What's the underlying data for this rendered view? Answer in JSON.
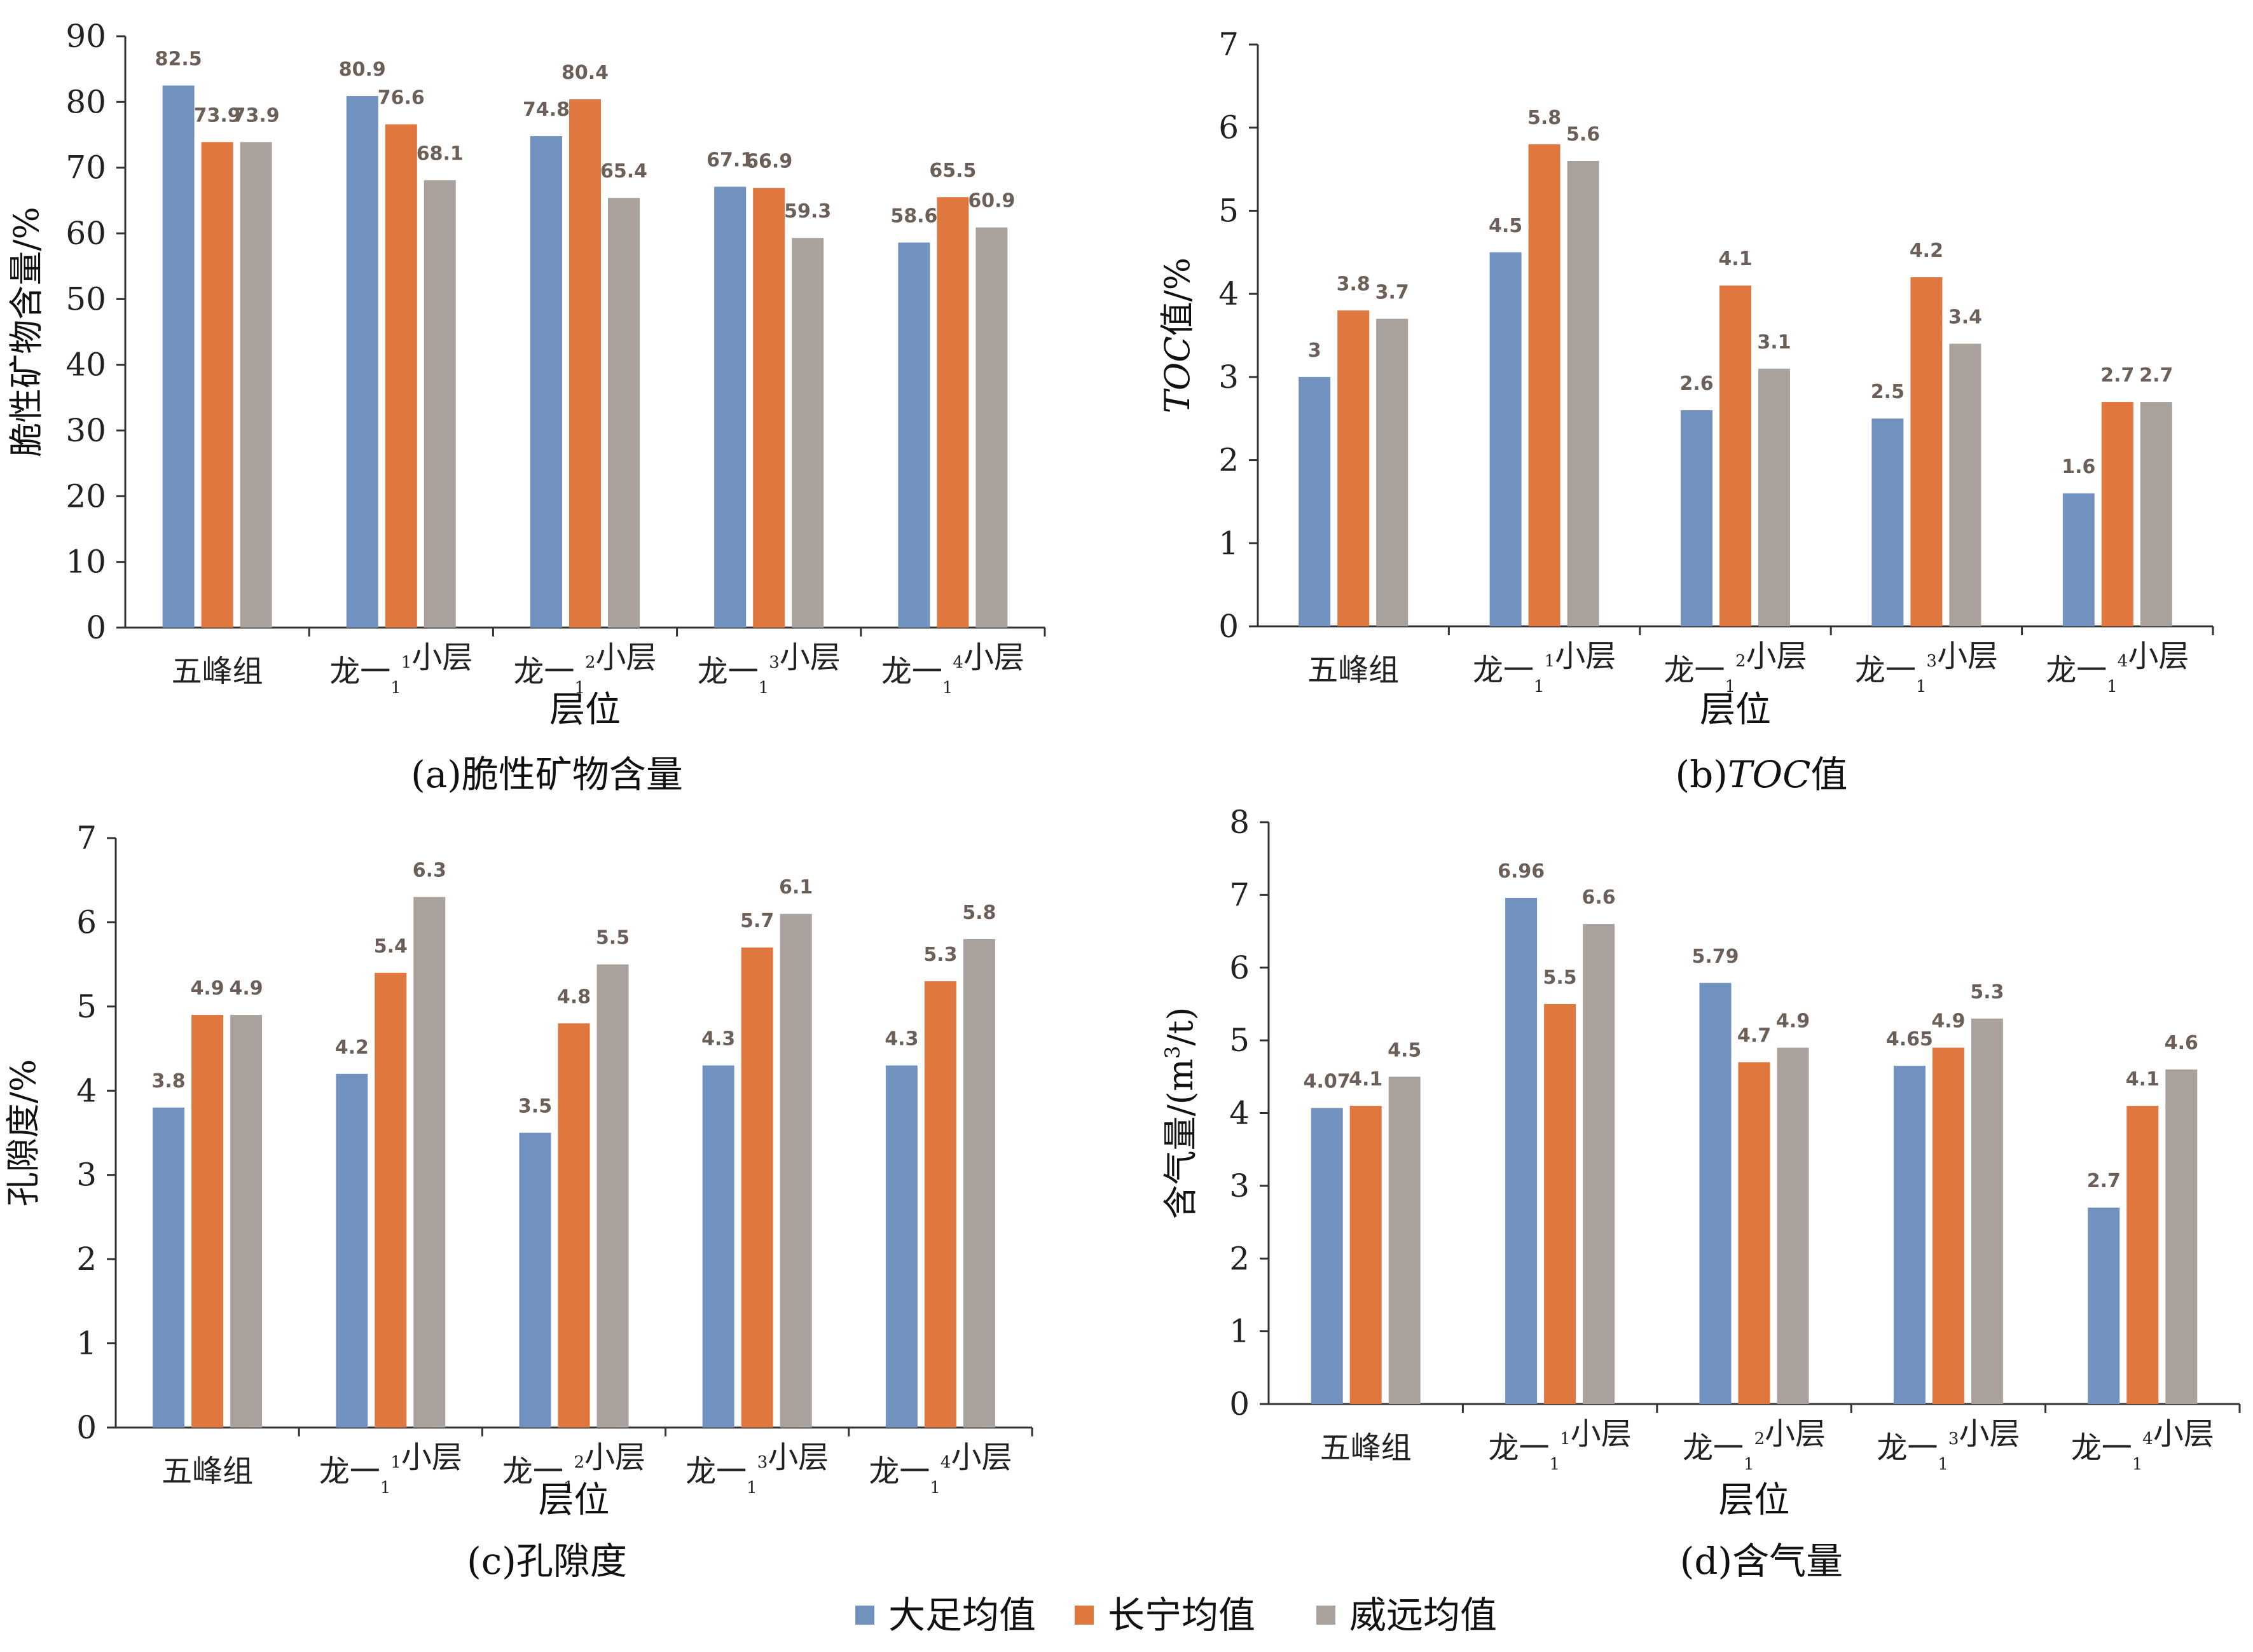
{
  "legend": [
    {
      "name": "大足均值",
      "color": "#7191be"
    },
    {
      "name": "长宁均值",
      "color": "#df773f"
    },
    {
      "name": "威远均值",
      "color": "#a9a19c"
    }
  ],
  "chart_data": [
    {
      "type": "bar",
      "caption": "(a)脆性矿物含量",
      "xlabel": "层位",
      "ylabel": "脆性矿物含量/%",
      "ylim": [
        0,
        90
      ],
      "yticks": [
        "0",
        "10",
        "20",
        "30",
        "40",
        "50",
        "60",
        "70",
        "80",
        "90"
      ],
      "categories": [
        "五峰组",
        "龙一₁¹小层",
        "龙一₁²小层",
        "龙一₁³小层",
        "龙一₁⁴小层"
      ],
      "series": [
        {
          "name": "大足均值",
          "values": [
            82.5,
            80.9,
            74.8,
            67.1,
            58.6
          ],
          "labels": [
            "82.5",
            "80.9",
            "74.8",
            "67.1",
            "58.6"
          ]
        },
        {
          "name": "长宁均值",
          "values": [
            73.9,
            76.6,
            80.4,
            66.9,
            65.5
          ],
          "labels": [
            "73.9",
            "76.6",
            "80.4",
            "66.9",
            "65.5"
          ]
        },
        {
          "name": "威远均值",
          "values": [
            73.9,
            68.1,
            65.4,
            59.3,
            60.9
          ],
          "labels": [
            "73.9",
            "68.1",
            "65.4",
            "59.3",
            "60.9"
          ]
        }
      ]
    },
    {
      "type": "bar",
      "caption": "(b)TOC值",
      "xlabel": "层位",
      "ylabel": "TOC值/%",
      "ylim": [
        0,
        7
      ],
      "yticks": [
        "0",
        "1",
        "2",
        "3",
        "4",
        "5",
        "6",
        "7"
      ],
      "categories": [
        "五峰组",
        "龙一₁¹小层",
        "龙一₁²小层",
        "龙一₁³小层",
        "龙一₁⁴小层"
      ],
      "series": [
        {
          "name": "大足均值",
          "values": [
            3.0,
            4.5,
            2.6,
            2.5,
            1.6
          ],
          "labels": [
            "3",
            "4.5",
            "2.6",
            "2.5",
            "1.6"
          ]
        },
        {
          "name": "长宁均值",
          "values": [
            3.8,
            5.8,
            4.1,
            4.2,
            2.7
          ],
          "labels": [
            "3.8",
            "5.8",
            "4.1",
            "4.2",
            "2.7"
          ]
        },
        {
          "name": "威远均值",
          "values": [
            3.7,
            5.6,
            3.1,
            3.4,
            2.7
          ],
          "labels": [
            "3.7",
            "5.6",
            "3.1",
            "3.4",
            "2.7"
          ]
        }
      ]
    },
    {
      "type": "bar",
      "caption": "(c)孔隙度",
      "xlabel": "层位",
      "ylabel": "孔隙度/%",
      "ylim": [
        0,
        7
      ],
      "yticks": [
        "0",
        "1",
        "2",
        "3",
        "4",
        "5",
        "6",
        "7"
      ],
      "categories": [
        "五峰组",
        "龙一₁¹小层",
        "龙一₁²小层",
        "龙一₁³小层",
        "龙一₁⁴小层"
      ],
      "series": [
        {
          "name": "大足均值",
          "values": [
            3.8,
            4.2,
            3.5,
            4.3,
            4.3
          ],
          "labels": [
            "3.8",
            "4.2",
            "3.5",
            "4.3",
            "4.3"
          ]
        },
        {
          "name": "长宁均值",
          "values": [
            4.9,
            5.4,
            4.8,
            5.7,
            5.3
          ],
          "labels": [
            "4.9",
            "5.4",
            "4.8",
            "5.7",
            "5.3"
          ]
        },
        {
          "name": "威远均值",
          "values": [
            4.9,
            6.3,
            5.5,
            6.1,
            5.8
          ],
          "labels": [
            "4.9",
            "6.3",
            "5.5",
            "6.1",
            "5.8"
          ]
        }
      ]
    },
    {
      "type": "bar",
      "caption": "(d)含气量",
      "xlabel": "层位",
      "ylabel": "含气量/(m³/t)",
      "ylim": [
        0,
        8
      ],
      "yticks": [
        "0",
        "1",
        "2",
        "3",
        "4",
        "5",
        "6",
        "7",
        "8"
      ],
      "categories": [
        "五峰组",
        "龙一₁¹小层",
        "龙一₁²小层",
        "龙一₁³小层",
        "龙一₁⁴小层"
      ],
      "series": [
        {
          "name": "大足均值",
          "values": [
            4.07,
            6.96,
            5.79,
            4.65,
            2.7
          ],
          "labels": [
            "4.07",
            "6.96",
            "5.79",
            "4.65",
            "2.7"
          ]
        },
        {
          "name": "长宁均值",
          "values": [
            4.1,
            5.5,
            4.7,
            4.9,
            4.1
          ],
          "labels": [
            "4.1",
            "5.5",
            "4.7",
            "4.9",
            "4.1"
          ]
        },
        {
          "name": "威远均值",
          "values": [
            4.5,
            6.6,
            4.9,
            5.3,
            4.6
          ],
          "labels": [
            "4.5",
            "6.6",
            "4.9",
            "5.3",
            "4.6"
          ]
        }
      ]
    }
  ]
}
